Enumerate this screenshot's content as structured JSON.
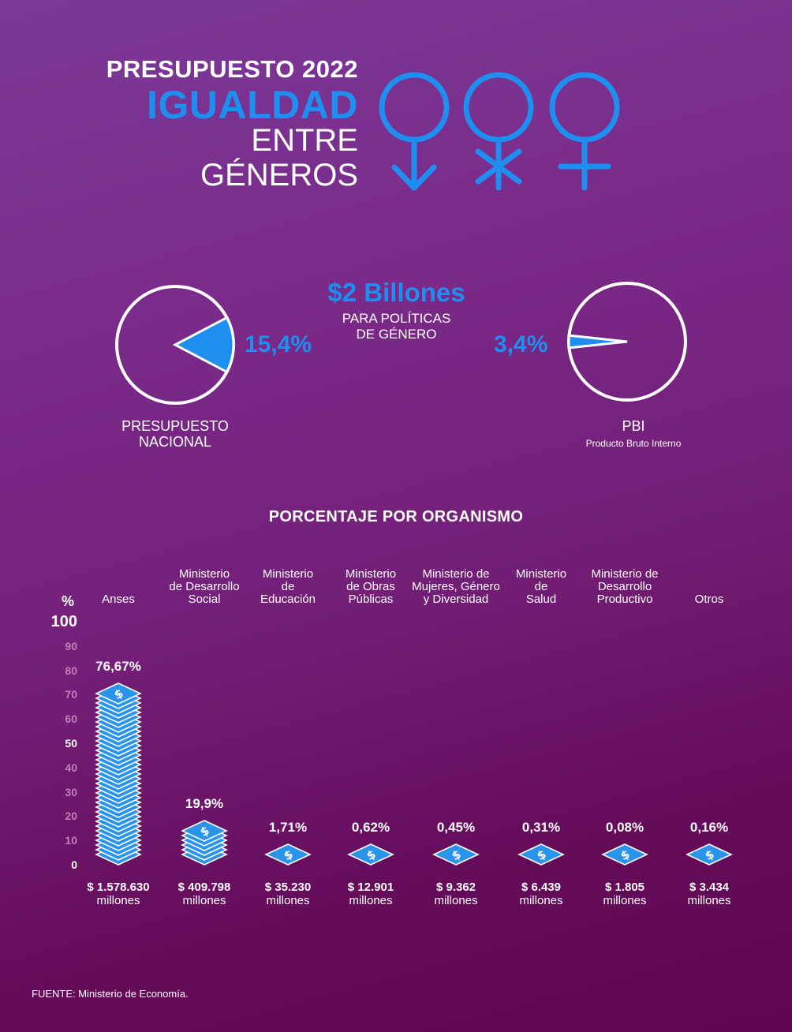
{
  "header": {
    "line1": "PRESUPUESTO 2022",
    "line2": "IGUALDAD",
    "line3": "ENTRE",
    "line4": "GÉNEROS",
    "symbols": [
      "female-arrow-icon",
      "female-asterisk-icon",
      "female-cross-icon"
    ]
  },
  "summary": {
    "amount": "$2 Billones",
    "sub1": "PARA POLÍTICAS",
    "sub2": "DE GÉNERO",
    "left_pie": {
      "pct_label": "15,4%",
      "value": 15.4,
      "label1": "PRESUPUESTO",
      "label2": "NACIONAL"
    },
    "right_pie": {
      "pct_label": "3,4%",
      "value": 3.4,
      "label1": "PBI",
      "label2": "Producto Bruto Interno"
    }
  },
  "colors": {
    "accent": "#1e8ff0",
    "background_top": "#7b3a98",
    "background_bottom": "#5e0652",
    "text": "#ffffff",
    "minor_tick": "#c27fb9"
  },
  "chart_data": {
    "type": "bar",
    "title": "PORCENTAJE POR ORGANISMO",
    "ylabel": "%",
    "ylim": [
      0,
      100
    ],
    "yticks": [
      "0",
      "10",
      "20",
      "30",
      "40",
      "50",
      "60",
      "70",
      "80",
      "90",
      "100"
    ],
    "categories": [
      [
        "Anses"
      ],
      [
        "Ministerio",
        "de Desarrollo",
        "Social"
      ],
      [
        "Ministerio",
        "de",
        "Educación"
      ],
      [
        "Ministerio",
        "de Obras",
        "Públicas"
      ],
      [
        "Ministerio de",
        "Mujeres, Género",
        "y Diversidad"
      ],
      [
        "Ministerio",
        "de",
        "Salud"
      ],
      [
        "Ministerio de",
        "Desarrollo",
        "Productivo"
      ],
      [
        "Otros"
      ]
    ],
    "values": [
      76.67,
      19.9,
      1.71,
      0.62,
      0.45,
      0.31,
      0.08,
      0.16
    ],
    "value_labels": [
      "76,67%",
      "19,9%",
      "1,71%",
      "0,62%",
      "0,45%",
      "0,31%",
      "0,08%",
      "0,16%"
    ],
    "amounts": [
      "$ 1.578.630",
      "$ 409.798",
      "$ 35.230",
      "$ 12.901",
      "$ 9.362",
      "$ 6.439",
      "$ 1.805",
      "$ 3.434"
    ],
    "amount_unit": "millones"
  },
  "footer": {
    "source": "FUENTE:  Ministerio de Economía."
  }
}
